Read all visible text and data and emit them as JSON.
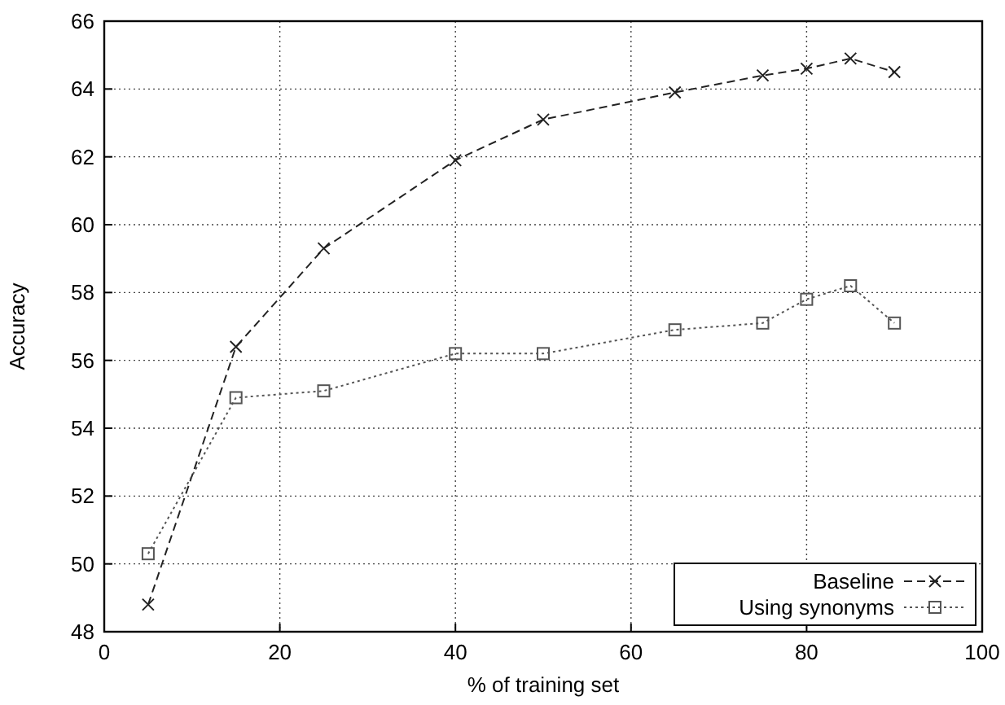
{
  "chart_data": {
    "type": "line",
    "xlabel": "% of training set",
    "ylabel": "Accuracy",
    "xlim": [
      0,
      100
    ],
    "xticks": [
      0,
      20,
      40,
      60,
      80,
      100
    ],
    "ylim": [
      48,
      66
    ],
    "yticks": [
      48,
      50,
      52,
      54,
      56,
      58,
      60,
      62,
      64,
      66
    ],
    "grid": true,
    "legend": "bottom right",
    "series": [
      {
        "name": "Baseline",
        "color": "#222222",
        "marker": "cross",
        "line_style": "dashed",
        "x": [
          5,
          15,
          25,
          40,
          50,
          65,
          75,
          80,
          85,
          90
        ],
        "values": [
          48.8,
          56.4,
          59.3,
          61.9,
          63.1,
          63.9,
          64.4,
          64.6,
          64.9,
          64.5
        ]
      },
      {
        "name": "Using synonyms",
        "color": "#555555",
        "marker": "square",
        "line_style": "dotted",
        "x": [
          5,
          15,
          25,
          40,
          50,
          65,
          75,
          80,
          85,
          90
        ],
        "values": [
          50.3,
          54.9,
          55.1,
          56.2,
          56.2,
          56.9,
          57.1,
          57.8,
          58.2,
          57.1
        ]
      }
    ]
  }
}
